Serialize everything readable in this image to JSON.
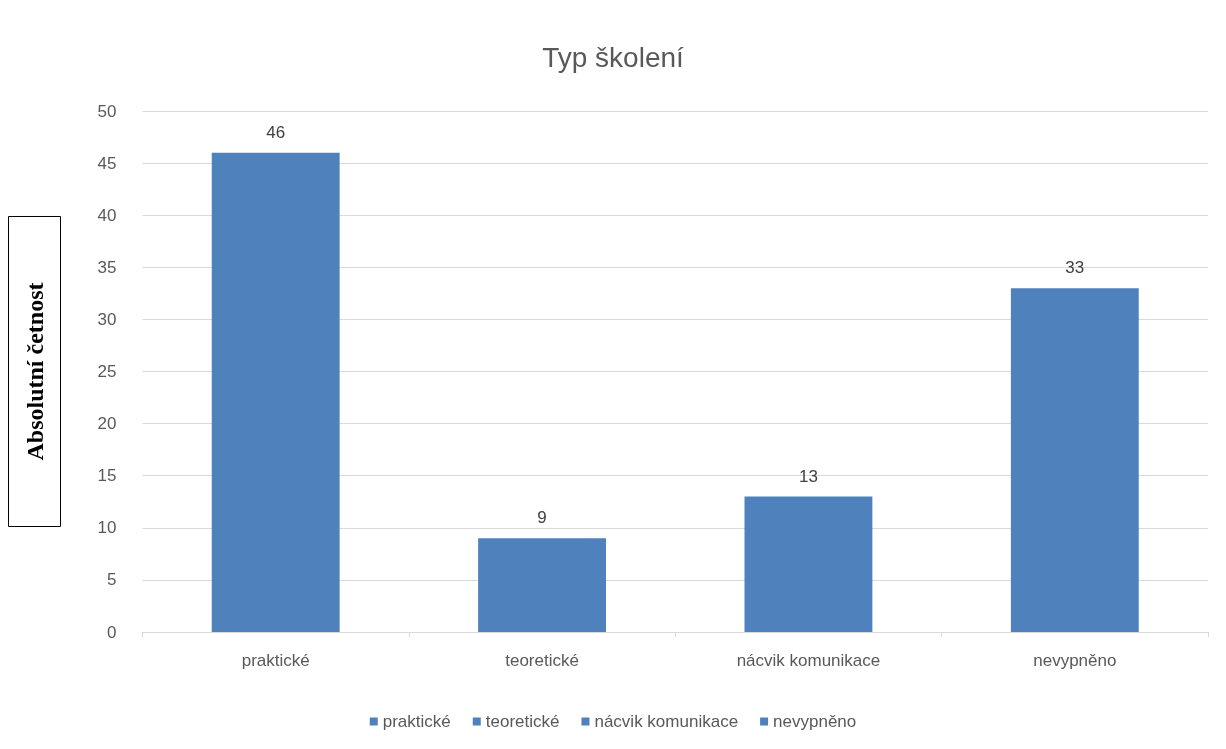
{
  "chart_data": {
    "type": "bar",
    "title": "Typ školení",
    "ylabel": "Absolutní četnost",
    "categories": [
      "praktické",
      "teoretické",
      "nácvik komunikace",
      "nevypněno"
    ],
    "series": [
      {
        "name": "praktické",
        "color": "#4f81bd",
        "values": [
          46,
          null,
          null,
          null
        ]
      },
      {
        "name": "teoretické",
        "color": "#4f81bd",
        "values": [
          null,
          9,
          null,
          null
        ]
      },
      {
        "name": "nácvik komunikace",
        "color": "#4f81bd",
        "values": [
          null,
          null,
          13,
          null
        ]
      },
      {
        "name": "nevypněno",
        "color": "#4f81bd",
        "values": [
          null,
          null,
          null,
          33
        ]
      }
    ],
    "ylim": [
      0,
      50
    ],
    "yticks": [
      0,
      5,
      10,
      15,
      20,
      25,
      30,
      35,
      40,
      45,
      50
    ],
    "grid": "y",
    "legend": "bottom",
    "data_labels": true
  }
}
